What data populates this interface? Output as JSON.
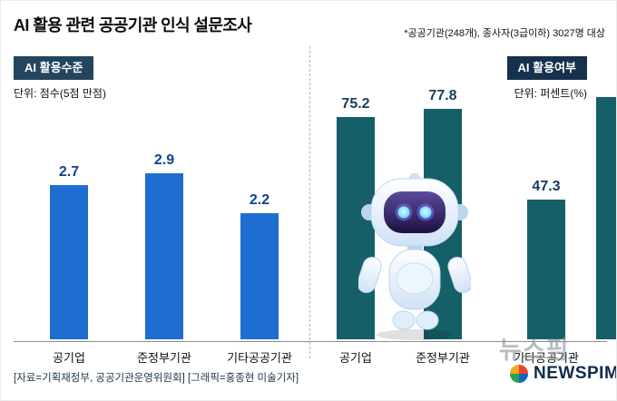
{
  "header": {
    "title": "AI 활용 관련 공공기관 인식 설문조사",
    "note": "*공공기관(248개), 종사자(3급이하) 3027명 대상"
  },
  "chart_data": [
    {
      "type": "bar",
      "title": "AI 활용수준",
      "unit": "단위: 점수(5점 만점)",
      "categories": [
        "공기업",
        "준정부기관",
        "기타공공기관"
      ],
      "values": [
        2.7,
        2.9,
        2.2
      ],
      "ylim": [
        0,
        5
      ],
      "grid": false,
      "legend_position": "none",
      "bar_color": "#1e6ed2",
      "value_color": "#12418f",
      "badge_color": "#23455e"
    },
    {
      "type": "bar",
      "title": "AI 활용여부",
      "unit": "단위: 퍼센트(%)",
      "categories": [
        "공기업",
        "준정부기관",
        "기타공공기관"
      ],
      "values": [
        75.2,
        77.8,
        47.3
      ],
      "ylim": [
        0,
        100
      ],
      "grid": false,
      "legend_position": "none",
      "bar_color": "#155f69",
      "value_color": "#1b3a5e",
      "badge_color": "#16314d"
    }
  ],
  "footer": {
    "source": "[자료=기획재정부, 공공기관운영위원회] [그래픽=홍종현 미술기자]"
  },
  "watermark": {
    "korean": "뉴스핌",
    "latin": "NEWSPIM"
  },
  "icons": {
    "robot": "ai-robot-illustration",
    "pinwheel": "newspim-pinwheel-logo"
  }
}
